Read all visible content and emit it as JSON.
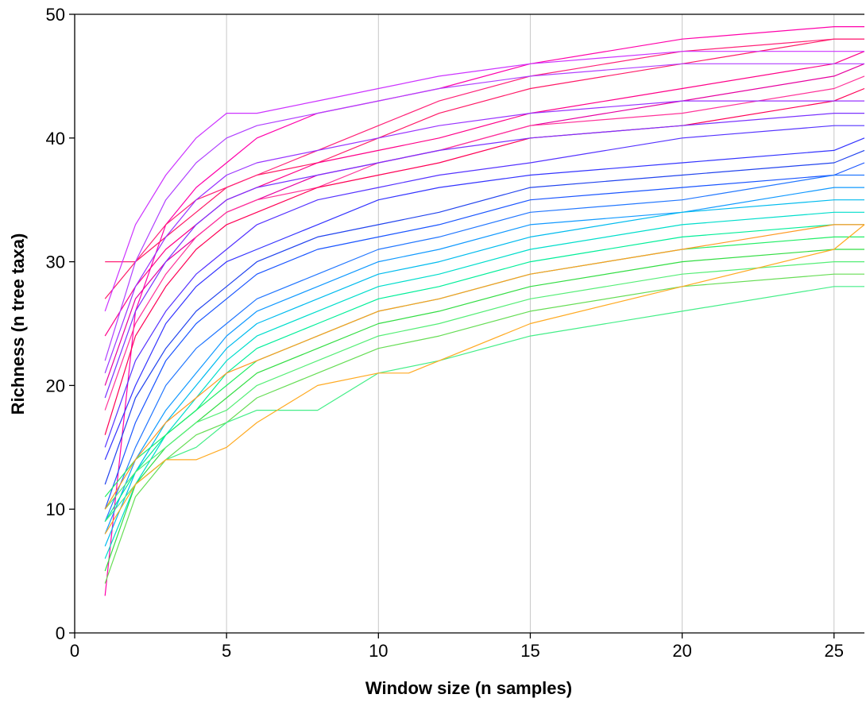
{
  "chart_data": {
    "type": "line",
    "title": "",
    "xlabel": "Window size (n samples)",
    "ylabel": "Richness (n tree taxa)",
    "xlim": [
      0,
      26
    ],
    "ylim": [
      0,
      50
    ],
    "xticks": [
      0,
      5,
      10,
      15,
      20,
      25
    ],
    "yticks": [
      0,
      10,
      20,
      30,
      40,
      50
    ],
    "xtick_labels": [
      "0",
      "5",
      "10",
      "15",
      "20",
      "25"
    ],
    "ytick_labels": [
      "0",
      "10",
      "20",
      "30",
      "40",
      "50"
    ],
    "grid": "vertical",
    "legend": "none",
    "series": [
      {
        "color": "#ff00aa",
        "x": [
          1,
          2,
          3,
          4,
          5,
          6,
          8,
          10,
          12,
          15,
          20,
          25,
          26
        ],
        "y": [
          3,
          26,
          33,
          36,
          38,
          40,
          42,
          43,
          44,
          46,
          48,
          49,
          49
        ]
      },
      {
        "color": "#ff1a66",
        "x": [
          1,
          2,
          3,
          4,
          5,
          6,
          8,
          10,
          12,
          15,
          20,
          25,
          26
        ],
        "y": [
          27,
          30,
          32,
          34,
          36,
          37,
          38,
          40,
          42,
          44,
          46,
          48,
          48
        ]
      },
      {
        "color": "#ff2277",
        "x": [
          1,
          2,
          3,
          4,
          5,
          6,
          8,
          10,
          12,
          15,
          20,
          25,
          26
        ],
        "y": [
          30,
          30,
          33,
          35,
          36,
          37,
          39,
          41,
          43,
          45,
          47,
          48,
          48
        ]
      },
      {
        "color": "#ff0088",
        "x": [
          1,
          2,
          3,
          4,
          5,
          6,
          8,
          10,
          12,
          15,
          20,
          25,
          26
        ],
        "y": [
          24,
          28,
          31,
          33,
          35,
          36,
          38,
          39,
          40,
          42,
          44,
          46,
          47
        ]
      },
      {
        "color": "#e600a0",
        "x": [
          1,
          2,
          3,
          4,
          5,
          6,
          8,
          10,
          12,
          15,
          20,
          25,
          26
        ],
        "y": [
          20,
          27,
          30,
          32,
          34,
          35,
          37,
          38,
          39,
          41,
          43,
          45,
          46
        ]
      },
      {
        "color": "#cc33ff",
        "x": [
          1,
          2,
          3,
          4,
          5,
          6,
          8,
          10,
          12,
          15,
          20,
          25,
          26
        ],
        "y": [
          26,
          33,
          37,
          40,
          42,
          42,
          43,
          44,
          45,
          46,
          47,
          47,
          47
        ]
      },
      {
        "color": "#b040ff",
        "x": [
          1,
          2,
          3,
          4,
          5,
          6,
          8,
          10,
          12,
          15,
          20,
          25,
          26
        ],
        "y": [
          22,
          30,
          35,
          38,
          40,
          41,
          42,
          43,
          44,
          45,
          46,
          46,
          46
        ]
      },
      {
        "color": "#ff3399",
        "x": [
          1,
          2,
          3,
          4,
          5,
          6,
          8,
          10,
          12,
          15,
          20,
          25,
          26
        ],
        "y": [
          18,
          25,
          29,
          32,
          34,
          35,
          36,
          38,
          39,
          41,
          42,
          44,
          45
        ]
      },
      {
        "color": "#ff0055",
        "x": [
          1,
          2,
          3,
          4,
          5,
          6,
          8,
          10,
          12,
          15,
          20,
          25,
          26
        ],
        "y": [
          16,
          24,
          28,
          31,
          33,
          34,
          36,
          37,
          38,
          40,
          41,
          43,
          44
        ]
      },
      {
        "color": "#9933ff",
        "x": [
          1,
          2,
          3,
          4,
          5,
          6,
          8,
          10,
          12,
          15,
          20,
          25,
          26
        ],
        "y": [
          21,
          28,
          32,
          35,
          37,
          38,
          39,
          40,
          41,
          42,
          43,
          43,
          43
        ]
      },
      {
        "color": "#7a33ff",
        "x": [
          1,
          2,
          3,
          4,
          5,
          6,
          8,
          10,
          12,
          15,
          20,
          25,
          26
        ],
        "y": [
          19,
          26,
          30,
          33,
          35,
          36,
          37,
          38,
          39,
          40,
          41,
          42,
          42
        ]
      },
      {
        "color": "#5533ff",
        "x": [
          1,
          2,
          3,
          4,
          5,
          6,
          8,
          10,
          12,
          15,
          20,
          25,
          26
        ],
        "y": [
          15,
          22,
          26,
          29,
          31,
          33,
          35,
          36,
          37,
          38,
          40,
          41,
          41
        ]
      },
      {
        "color": "#3333ff",
        "x": [
          1,
          2,
          3,
          4,
          5,
          6,
          8,
          10,
          12,
          15,
          20,
          25,
          26
        ],
        "y": [
          14,
          20,
          25,
          28,
          30,
          31,
          33,
          35,
          36,
          37,
          38,
          39,
          40
        ]
      },
      {
        "color": "#2244ee",
        "x": [
          1,
          2,
          3,
          4,
          5,
          6,
          8,
          10,
          12,
          15,
          20,
          25,
          26
        ],
        "y": [
          12,
          19,
          23,
          26,
          28,
          30,
          32,
          33,
          34,
          36,
          37,
          38,
          39
        ]
      },
      {
        "color": "#1a55ff",
        "x": [
          1,
          2,
          3,
          4,
          5,
          6,
          8,
          10,
          12,
          15,
          20,
          25,
          26
        ],
        "y": [
          10,
          17,
          22,
          25,
          27,
          29,
          31,
          32,
          33,
          35,
          36,
          37,
          38
        ]
      },
      {
        "color": "#2277ff",
        "x": [
          1,
          2,
          3,
          4,
          5,
          6,
          8,
          10,
          12,
          15,
          20,
          25,
          26
        ],
        "y": [
          9,
          15,
          20,
          23,
          25,
          27,
          29,
          31,
          32,
          34,
          35,
          37,
          37
        ]
      },
      {
        "color": "#1199ff",
        "x": [
          1,
          2,
          3,
          4,
          5,
          6,
          8,
          10,
          12,
          15,
          20,
          25,
          26
        ],
        "y": [
          8,
          14,
          18,
          21,
          24,
          26,
          28,
          30,
          31,
          33,
          34,
          36,
          36
        ]
      },
      {
        "color": "#00bbee",
        "x": [
          1,
          2,
          3,
          4,
          5,
          6,
          8,
          10,
          12,
          15,
          20,
          25,
          26
        ],
        "y": [
          7,
          13,
          17,
          20,
          23,
          25,
          27,
          29,
          30,
          32,
          34,
          35,
          35
        ]
      },
      {
        "color": "#00ddcc",
        "x": [
          1,
          2,
          3,
          4,
          5,
          6,
          8,
          10,
          12,
          15,
          20,
          25,
          26
        ],
        "y": [
          6,
          12,
          16,
          19,
          22,
          24,
          26,
          28,
          29,
          31,
          33,
          34,
          34
        ]
      },
      {
        "color": "#00ee99",
        "x": [
          1,
          2,
          3,
          4,
          5,
          6,
          8,
          10,
          12,
          15,
          20,
          25,
          26
        ],
        "y": [
          9,
          13,
          16,
          18,
          21,
          23,
          25,
          27,
          28,
          30,
          32,
          33,
          33
        ]
      },
      {
        "color": "#22ee66",
        "x": [
          1,
          2,
          3,
          4,
          5,
          6,
          8,
          10,
          12,
          15,
          20,
          25,
          26
        ],
        "y": [
          11,
          14,
          16,
          18,
          20,
          22,
          24,
          26,
          27,
          29,
          31,
          32,
          32
        ]
      },
      {
        "color": "#33dd44",
        "x": [
          1,
          2,
          3,
          4,
          5,
          6,
          8,
          10,
          12,
          15,
          20,
          25,
          26
        ],
        "y": [
          5,
          12,
          15,
          17,
          19,
          21,
          23,
          25,
          26,
          28,
          30,
          31,
          31
        ]
      },
      {
        "color": "#55ee77",
        "x": [
          1,
          2,
          3,
          4,
          5,
          6,
          8,
          10,
          12,
          15,
          20,
          25,
          26
        ],
        "y": [
          10,
          13,
          15,
          17,
          18,
          20,
          22,
          24,
          25,
          27,
          29,
          30,
          30
        ]
      },
      {
        "color": "#66dd55",
        "x": [
          1,
          2,
          3,
          4,
          5,
          6,
          8,
          10,
          12,
          15,
          20,
          25,
          26
        ],
        "y": [
          4,
          11,
          14,
          16,
          17,
          19,
          21,
          23,
          24,
          26,
          28,
          29,
          29
        ]
      },
      {
        "color": "#44ee88",
        "x": [
          1,
          2,
          3,
          4,
          5,
          6,
          8,
          10,
          12,
          15,
          20,
          25,
          26
        ],
        "y": [
          9,
          12,
          14,
          15,
          17,
          18,
          18,
          21,
          22,
          24,
          26,
          28,
          28
        ]
      },
      {
        "color": "#ffaa22",
        "x": [
          1,
          2,
          3,
          4,
          5,
          6,
          8,
          10,
          11,
          15,
          20,
          25,
          26
        ],
        "y": [
          8,
          12,
          14,
          14,
          15,
          17,
          20,
          21,
          21,
          25,
          28,
          31,
          33
        ]
      },
      {
        "color": "#ff9922",
        "x": [
          1,
          2,
          3,
          4,
          5,
          6,
          8,
          10,
          12,
          15,
          20,
          25,
          26
        ],
        "y": [
          10,
          14,
          17,
          19,
          21,
          22,
          24,
          26,
          27,
          29,
          31,
          33,
          33
        ]
      }
    ]
  }
}
